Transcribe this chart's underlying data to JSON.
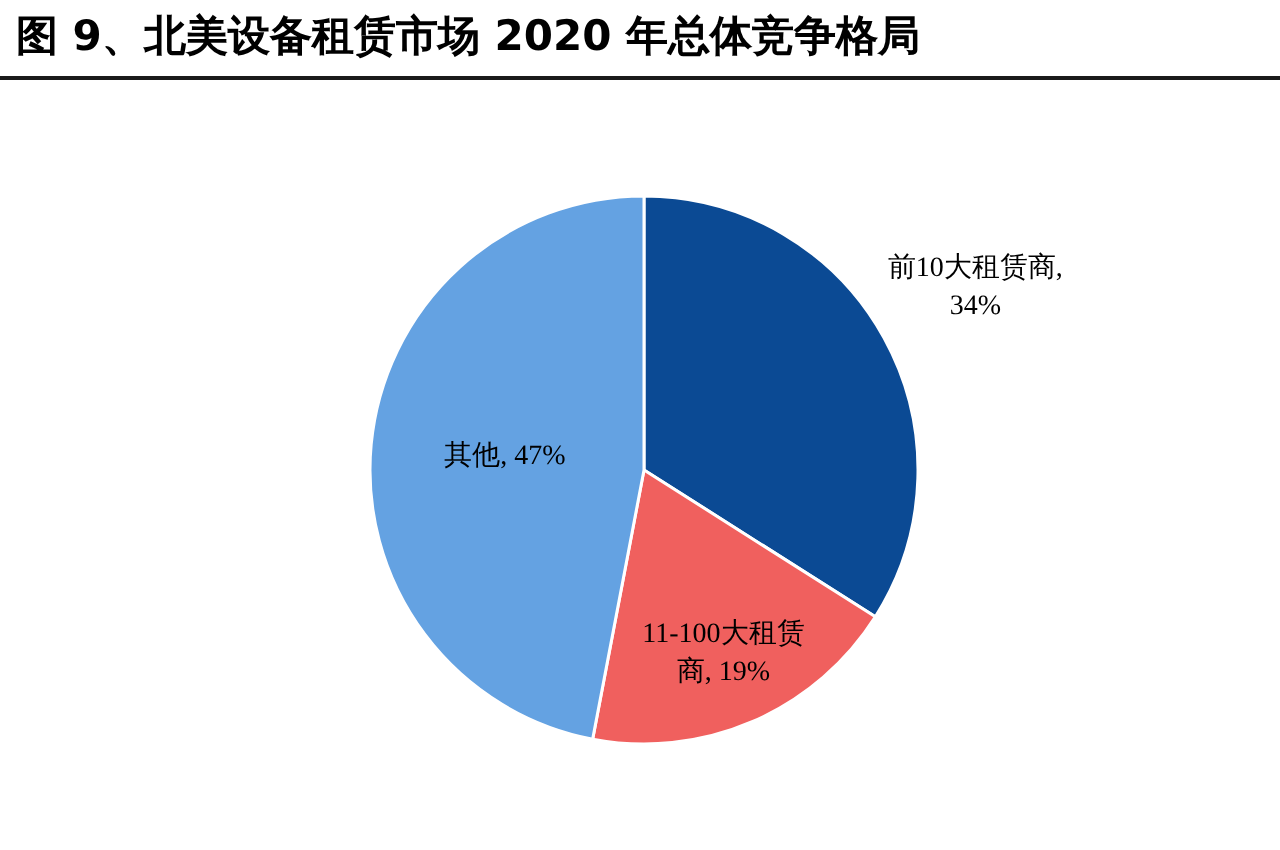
{
  "chart_data": {
    "type": "pie",
    "title": "图 9、北美设备租赁市场 2020 年总体竞争格局",
    "values": [
      34,
      19,
      47
    ],
    "value_labels": [
      "前10大租赁商, 34%",
      "11-100大租赁商, 19%",
      "其他, 47%"
    ],
    "colors": [
      "#0b4a94",
      "#f0605e",
      "#64a2e2"
    ]
  }
}
